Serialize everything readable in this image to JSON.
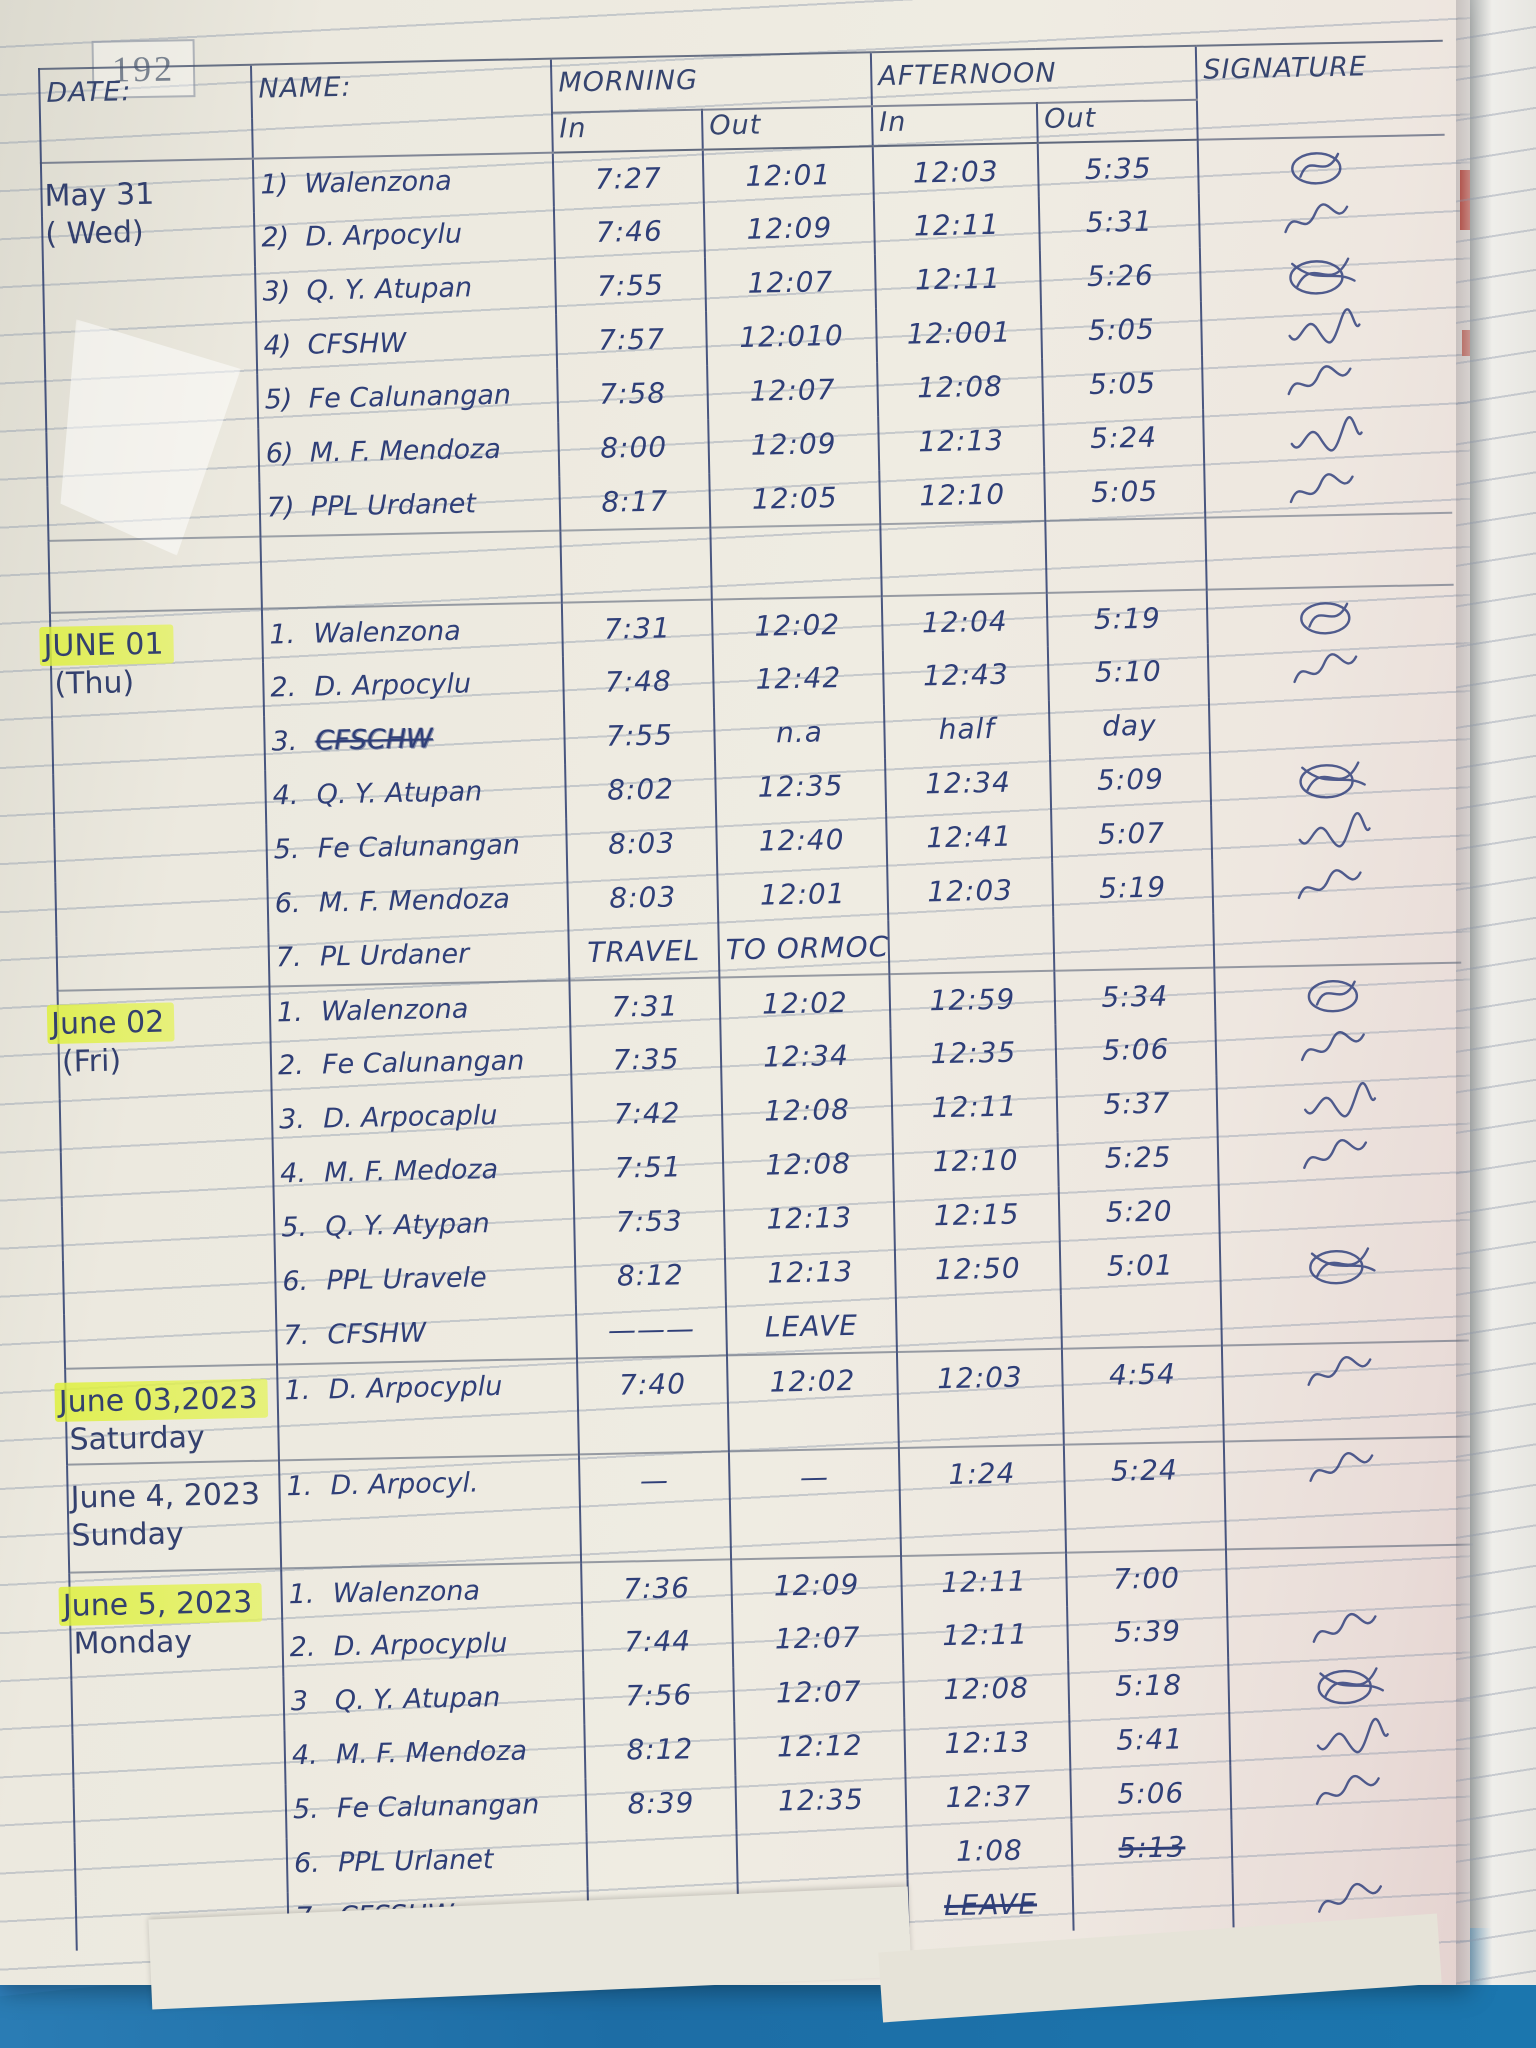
{
  "page_number": "192",
  "colors": {
    "ink": "#2f3f78",
    "highlight": "#e4f25a",
    "paper": "#efece2",
    "desk_blue": "#1d6da5"
  },
  "table": {
    "header": {
      "date": "DATE:",
      "name": "NAME:",
      "morning": "MORNING",
      "afternoon": "AFTERNOON",
      "morning_in": "In",
      "morning_out": "Out",
      "afternoon_in": "In",
      "afternoon_out": "Out",
      "signature": "SIGNATURE"
    },
    "blocks": [
      {
        "date": [
          {
            "text": "May 31",
            "hl": false
          },
          {
            "text": "( Wed)",
            "hl": false
          }
        ],
        "rows": [
          {
            "num": "1)",
            "name": "Walenzona",
            "am_in": "7:27",
            "am_out": "12:01",
            "pm_in": "12:03",
            "pm_out": "5:35",
            "sig": "c1"
          },
          {
            "num": "2)",
            "name": "D. Arpocylu",
            "am_in": "7:46",
            "am_out": "12:09",
            "pm_in": "12:11",
            "pm_out": "5:31",
            "sig": "s1"
          },
          {
            "num": "3)",
            "name": "Q. Y. Atupan",
            "am_in": "7:55",
            "am_out": "12:07",
            "pm_in": "12:11",
            "pm_out": "5:26",
            "sig": "c2"
          },
          {
            "num": "4)",
            "name": "CFSHW",
            "am_in": "7:57",
            "am_out": "12:010",
            "pm_in": "12:001",
            "pm_out": "5:05",
            "sig": "s2"
          },
          {
            "num": "5)",
            "name": "Fe Calunangan",
            "am_in": "7:58",
            "am_out": "12:07",
            "pm_in": "12:08",
            "pm_out": "5:05",
            "sig": "s1"
          },
          {
            "num": "6)",
            "name": "M. F. Mendoza",
            "am_in": "8:00",
            "am_out": "12:09",
            "pm_in": "12:13",
            "pm_out": "5:24",
            "sig": "s2"
          },
          {
            "num": "7)",
            "name": "PPL Urdanet",
            "am_in": "8:17",
            "am_out": "12:05",
            "pm_in": "12:10",
            "pm_out": "5:05",
            "sig": "s1"
          }
        ]
      },
      {
        "gap_before": true,
        "date": [
          {
            "text": "JUNE 01",
            "hl": true
          },
          {
            "text": "(Thu)",
            "hl": false
          }
        ],
        "rows": [
          {
            "num": "1.",
            "name": "Walenzona",
            "am_in": "7:31",
            "am_out": "12:02",
            "pm_in": "12:04",
            "pm_out": "5:19",
            "sig": "c1"
          },
          {
            "num": "2.",
            "name": "D. Arpocylu",
            "am_in": "7:48",
            "am_out": "12:42",
            "pm_in": "12:43",
            "pm_out": "5:10",
            "sig": "s1"
          },
          {
            "num": "3.",
            "name": "CFSCHW",
            "scribbled": true,
            "am_in": "7:55",
            "am_out": "n.a",
            "pm_in": "half",
            "pm_out": "day",
            "sig": ""
          },
          {
            "num": "4.",
            "name": "Q. Y. Atupan",
            "am_in": "8:02",
            "am_out": "12:35",
            "pm_in": "12:34",
            "pm_out": "5:09",
            "sig": "c2"
          },
          {
            "num": "5.",
            "name": "Fe Calunangan",
            "am_in": "8:03",
            "am_out": "12:40",
            "pm_in": "12:41",
            "pm_out": "5:07",
            "sig": "s2"
          },
          {
            "num": "6.",
            "name": "M. F. Mendoza",
            "am_in": "8:03",
            "am_out": "12:01",
            "pm_in": "12:03",
            "pm_out": "5:19",
            "sig": "s1"
          },
          {
            "num": "7.",
            "name": "PL Urdaner",
            "am_in": "TRAVEL",
            "am_out": "TO ORMOC",
            "pm_in": "",
            "pm_out": "",
            "note": true,
            "sig": ""
          }
        ]
      },
      {
        "date": [
          {
            "text": "June 02",
            "hl": true
          },
          {
            "text": "(Fri)",
            "hl": false
          }
        ],
        "rows": [
          {
            "num": "1.",
            "name": "Walenzona",
            "am_in": "7:31",
            "am_out": "12:02",
            "pm_in": "12:59",
            "pm_out": "5:34",
            "sig": "c1"
          },
          {
            "num": "2.",
            "name": "Fe Calunangan",
            "am_in": "7:35",
            "am_out": "12:34",
            "pm_in": "12:35",
            "pm_out": "5:06",
            "sig": "s1"
          },
          {
            "num": "3.",
            "name": "D. Arpocaplu",
            "am_in": "7:42",
            "am_out": "12:08",
            "pm_in": "12:11",
            "pm_out": "5:37",
            "sig": "s2"
          },
          {
            "num": "4.",
            "name": "M. F. Medoza",
            "am_in": "7:51",
            "am_out": "12:08",
            "pm_in": "12:10",
            "pm_out": "5:25",
            "sig": "s1"
          },
          {
            "num": "5.",
            "name": "Q. Y. Atypan",
            "am_in": "7:53",
            "am_out": "12:13",
            "pm_in": "12:15",
            "pm_out": "5:20",
            "sig": ""
          },
          {
            "num": "6.",
            "name": "PPL Uravele",
            "am_in": "8:12",
            "am_out": "12:13",
            "pm_in": "12:50",
            "pm_out": "5:01",
            "sig": "c2"
          },
          {
            "num": "7.",
            "name": "CFSHW",
            "am_in": "———",
            "am_out": "LEAVE",
            "pm_in": "",
            "pm_out": "",
            "note": true,
            "sig": ""
          }
        ]
      },
      {
        "h": 96,
        "date": [
          {
            "text": "June 03,2023",
            "hl": true
          },
          {
            "text": "Saturday",
            "hl": false
          }
        ],
        "rows": [
          {
            "num": "1.",
            "name": "D. Arpocyplu",
            "am_in": "7:40",
            "am_out": "12:02",
            "pm_in": "12:03",
            "pm_out": "4:54",
            "sig": "s1"
          }
        ]
      },
      {
        "h": 108,
        "date": [
          {
            "text": "June 4, 2023",
            "hl": false
          },
          {
            "text": "Sunday",
            "hl": false
          }
        ],
        "rows": [
          {
            "num": "1.",
            "name": "D. Arpocyl.",
            "am_in": "—",
            "am_out": "—",
            "pm_in": "1:24",
            "pm_out": "5:24",
            "sig": "s1"
          }
        ]
      },
      {
        "date": [
          {
            "text": "June 5, 2023",
            "hl": true
          },
          {
            "text": "Monday",
            "hl": false
          }
        ],
        "rows": [
          {
            "num": "1.",
            "name": "Walenzona",
            "am_in": "7:36",
            "am_out": "12:09",
            "pm_in": "12:11",
            "pm_out": "7:00",
            "sig": ""
          },
          {
            "num": "2.",
            "name": "D. Arpocyplu",
            "am_in": "7:44",
            "am_out": "12:07",
            "pm_in": "12:11",
            "pm_out": "5:39",
            "sig": "s1"
          },
          {
            "num": "3",
            "name": "Q. Y. Atupan",
            "am_in": "7:56",
            "am_out": "12:07",
            "pm_in": "12:08",
            "pm_out": "5:18",
            "sig": "c2"
          },
          {
            "num": "4.",
            "name": "M. F. Mendoza",
            "am_in": "8:12",
            "am_out": "12:12",
            "pm_in": "12:13",
            "pm_out": "5:41",
            "sig": "s2"
          },
          {
            "num": "5.",
            "name": "Fe Calunangan",
            "am_in": "8:39",
            "am_out": "12:35",
            "pm_in": "12:37",
            "pm_out": "5:06",
            "sig": "s1"
          },
          {
            "num": "6.",
            "name": "PPL Urlanet",
            "am_in": "",
            "am_out": "",
            "pm_in": "1:08",
            "pm_out": "~5:13",
            "sig": ""
          },
          {
            "num": "7.",
            "name": "CFSSHW",
            "am_in": "——",
            "am_out": "",
            "pm_in": "~LEAVE",
            "pm_out": "",
            "sig": "s1"
          }
        ]
      }
    ]
  }
}
